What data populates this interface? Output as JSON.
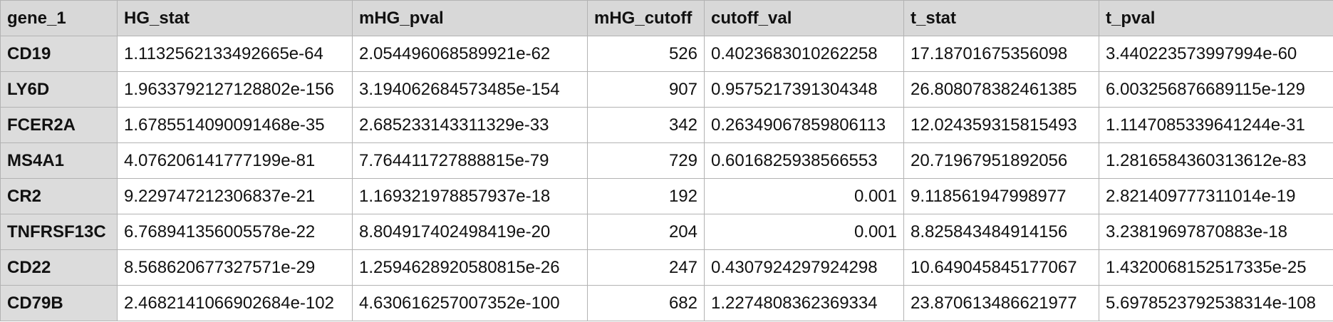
{
  "table": {
    "columns": [
      "gene_1",
      "HG_stat",
      "mHG_pval",
      "mHG_cutoff",
      "cutoff_val",
      "t_stat",
      "t_pval"
    ],
    "rows": [
      [
        "CD19",
        "1.1132562133492665e-64",
        "2.054496068589921e-62",
        "526",
        "0.4023683010262258",
        "17.18701675356098",
        "3.440223573997994e-60"
      ],
      [
        "LY6D",
        "1.9633792127128802e-156",
        "3.194062684573485e-154",
        "907",
        "0.9575217391304348",
        "26.808078382461385",
        "6.003256876689115e-129"
      ],
      [
        "FCER2A",
        "1.6785514090091468e-35",
        "2.685233143311329e-33",
        "342",
        "0.26349067859806113",
        "12.024359315815493",
        "1.1147085339641244e-31"
      ],
      [
        "MS4A1",
        "4.076206141777199e-81",
        "7.764411727888815e-79",
        "729",
        "0.6016825938566553",
        "20.71967951892056",
        "1.2816584360313612e-83"
      ],
      [
        "CR2",
        "9.229747212306837e-21",
        "1.169321978857937e-18",
        "192",
        "0.001",
        "9.118561947998977",
        "2.821409777311014e-19"
      ],
      [
        "TNFRSF13C",
        "6.768941356005578e-22",
        "8.804917402498419e-20",
        "204",
        "0.001",
        "8.825843484914156",
        "3.23819697870883e-18"
      ],
      [
        "CD22",
        "8.568620677327571e-29",
        "1.2594628920580815e-26",
        "247",
        "0.4307924297924298",
        "10.649045845177067",
        "1.4320068152517335e-25"
      ],
      [
        "CD79B",
        "2.4682141066902684e-102",
        "4.630616257007352e-100",
        "682",
        "1.2274808362369334",
        "23.870613486621977",
        "5.6978523792538314e-108"
      ]
    ]
  }
}
